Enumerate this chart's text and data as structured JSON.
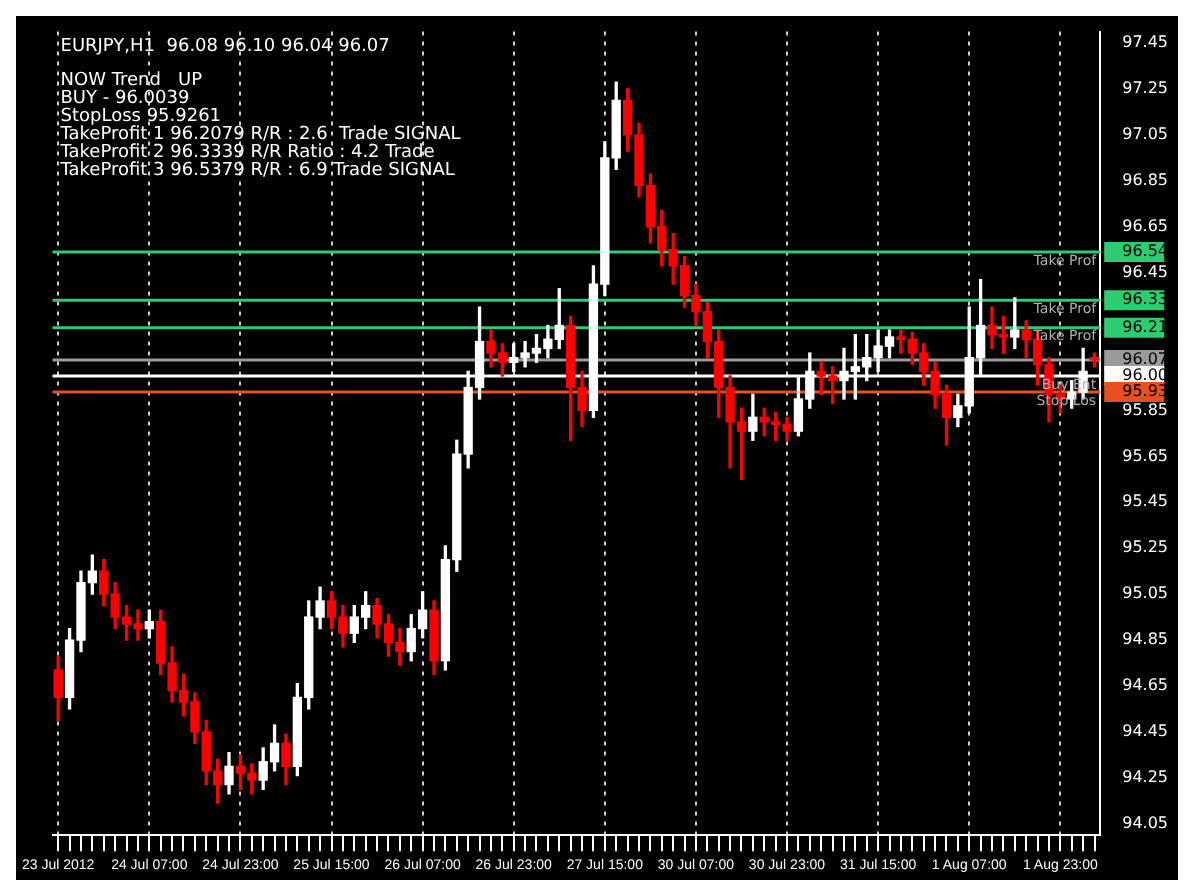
{
  "chart_data": {
    "type": "candlestick",
    "title": "EURJPY,H1  96.08 96.10 96.04 96.07",
    "annotations": [
      "NOW Trend   UP",
      "BUY - 96.0039",
      "StopLoss 95.9261",
      "TakeProfit 1 96.2079 R/R : 2.6  Trade SIGNAL",
      "TakeProfit 2 96.3339 R/R Ratio : 4.2 Trade",
      "TakeProfit 3 96.5379 R/R : 6.9 Trade SIGNAL"
    ],
    "categories": [
      "23 Jul 2012",
      null,
      null,
      null,
      null,
      null,
      null,
      null,
      "24 Jul 07:00",
      null,
      null,
      null,
      null,
      null,
      null,
      null,
      "24 Jul 23:00",
      null,
      null,
      null,
      null,
      null,
      null,
      null,
      "25 Jul 15:00",
      null,
      null,
      null,
      null,
      null,
      null,
      null,
      "26 Jul 07:00",
      null,
      null,
      null,
      null,
      null,
      null,
      null,
      "26 Jul 23:00",
      null,
      null,
      null,
      null,
      null,
      null,
      null,
      "27 Jul 15:00",
      null,
      null,
      null,
      null,
      null,
      null,
      null,
      "30 Jul 07:00",
      null,
      null,
      null,
      null,
      null,
      null,
      null,
      "30 Jul 23:00",
      null,
      null,
      null,
      null,
      null,
      null,
      null,
      "31 Jul 15:00",
      null,
      null,
      null,
      null,
      null,
      null,
      null,
      "1 Aug 07:00",
      null,
      null,
      null,
      null,
      null,
      null,
      null,
      "1 Aug 23:00",
      null,
      null,
      null
    ],
    "ohlc": [
      [
        94.72,
        94.78,
        94.5,
        94.6
      ],
      [
        94.6,
        94.9,
        94.55,
        94.85
      ],
      [
        94.85,
        95.15,
        94.8,
        95.1
      ],
      [
        95.1,
        95.22,
        95.05,
        95.15
      ],
      [
        95.15,
        95.2,
        95.0,
        95.05
      ],
      [
        95.05,
        95.1,
        94.9,
        94.95
      ],
      [
        94.95,
        95.0,
        94.85,
        94.92
      ],
      [
        94.92,
        94.98,
        94.85,
        94.9
      ],
      [
        94.9,
        94.98,
        94.86,
        94.93
      ],
      [
        94.93,
        94.98,
        94.7,
        94.75
      ],
      [
        94.75,
        94.82,
        94.58,
        94.63
      ],
      [
        94.63,
        94.7,
        94.52,
        94.58
      ],
      [
        94.58,
        94.62,
        94.4,
        94.45
      ],
      [
        94.45,
        94.5,
        94.22,
        94.28
      ],
      [
        94.28,
        94.33,
        94.14,
        94.22
      ],
      [
        94.22,
        94.36,
        94.18,
        94.3
      ],
      [
        94.3,
        94.35,
        94.2,
        94.27
      ],
      [
        94.27,
        94.31,
        94.18,
        94.24
      ],
      [
        94.24,
        94.38,
        94.2,
        94.32
      ],
      [
        94.32,
        94.48,
        94.28,
        94.4
      ],
      [
        94.4,
        94.44,
        94.22,
        94.3
      ],
      [
        94.3,
        94.66,
        94.26,
        94.6
      ],
      [
        94.6,
        95.02,
        94.55,
        94.95
      ],
      [
        94.95,
        95.08,
        94.9,
        95.02
      ],
      [
        95.02,
        95.06,
        94.9,
        94.95
      ],
      [
        94.95,
        95.0,
        94.82,
        94.88
      ],
      [
        94.88,
        95.0,
        94.84,
        94.95
      ],
      [
        94.95,
        95.06,
        94.9,
        95.0
      ],
      [
        95.0,
        95.03,
        94.86,
        94.92
      ],
      [
        94.92,
        94.96,
        94.78,
        94.84
      ],
      [
        94.84,
        94.9,
        94.74,
        94.8
      ],
      [
        94.8,
        94.96,
        94.76,
        94.9
      ],
      [
        94.9,
        95.06,
        94.86,
        94.98
      ],
      [
        94.98,
        95.02,
        94.7,
        94.76
      ],
      [
        94.76,
        95.26,
        94.72,
        95.2
      ],
      [
        95.2,
        95.72,
        95.15,
        95.66
      ],
      [
        95.66,
        96.02,
        95.6,
        95.95
      ],
      [
        95.95,
        96.3,
        95.9,
        96.15
      ],
      [
        96.15,
        96.2,
        96.04,
        96.1
      ],
      [
        96.1,
        96.14,
        96.0,
        96.06
      ],
      [
        96.06,
        96.14,
        96.02,
        96.08
      ],
      [
        96.08,
        96.15,
        96.04,
        96.1
      ],
      [
        96.1,
        96.18,
        96.06,
        96.12
      ],
      [
        96.12,
        96.22,
        96.08,
        96.16
      ],
      [
        96.16,
        96.38,
        96.12,
        96.22
      ],
      [
        96.22,
        96.26,
        95.72,
        95.95
      ],
      [
        95.95,
        96.02,
        95.78,
        95.85
      ],
      [
        95.85,
        96.48,
        95.82,
        96.4
      ],
      [
        96.4,
        97.02,
        96.35,
        96.95
      ],
      [
        96.95,
        97.28,
        96.9,
        97.2
      ],
      [
        97.2,
        97.25,
        96.98,
        97.05
      ],
      [
        97.05,
        97.1,
        96.78,
        96.83
      ],
      [
        96.83,
        96.88,
        96.58,
        96.65
      ],
      [
        96.65,
        96.72,
        96.48,
        96.55
      ],
      [
        96.55,
        96.62,
        96.4,
        96.48
      ],
      [
        96.48,
        96.52,
        96.3,
        96.35
      ],
      [
        96.35,
        96.4,
        96.22,
        96.28
      ],
      [
        96.28,
        96.32,
        96.08,
        96.15
      ],
      [
        96.15,
        96.2,
        95.82,
        95.95
      ],
      [
        95.95,
        96.0,
        95.6,
        95.8
      ],
      [
        95.8,
        95.86,
        95.55,
        95.76
      ],
      [
        95.76,
        95.92,
        95.72,
        95.82
      ],
      [
        95.82,
        95.86,
        95.74,
        95.8
      ],
      [
        95.8,
        95.84,
        95.72,
        95.79
      ],
      [
        95.79,
        95.82,
        95.72,
        95.76
      ],
      [
        95.76,
        96.0,
        95.74,
        95.9
      ],
      [
        95.9,
        96.1,
        95.86,
        96.02
      ],
      [
        96.02,
        96.06,
        95.92,
        96.0
      ],
      [
        96.0,
        96.04,
        95.88,
        95.98
      ],
      [
        95.98,
        96.12,
        95.9,
        96.02
      ],
      [
        96.02,
        96.18,
        95.9,
        96.04
      ],
      [
        96.04,
        96.18,
        95.98,
        96.08
      ],
      [
        96.08,
        96.2,
        96.02,
        96.13
      ],
      [
        96.13,
        96.2,
        96.08,
        96.17
      ],
      [
        96.17,
        96.2,
        96.1,
        96.16
      ],
      [
        96.16,
        96.19,
        96.05,
        96.1
      ],
      [
        96.1,
        96.14,
        95.96,
        96.02
      ],
      [
        96.02,
        96.06,
        95.86,
        95.92
      ],
      [
        95.92,
        95.96,
        95.7,
        95.82
      ],
      [
        95.82,
        95.92,
        95.78,
        95.87
      ],
      [
        95.87,
        96.3,
        95.84,
        96.08
      ],
      [
        96.08,
        96.42,
        96.0,
        96.22
      ],
      [
        96.22,
        96.3,
        96.12,
        96.18
      ],
      [
        96.18,
        96.26,
        96.1,
        96.17
      ],
      [
        96.17,
        96.34,
        96.12,
        96.2
      ],
      [
        96.2,
        96.24,
        96.08,
        96.16
      ],
      [
        96.16,
        96.2,
        95.96,
        96.05
      ],
      [
        96.05,
        96.08,
        95.8,
        95.92
      ],
      [
        95.92,
        95.96,
        95.84,
        95.9
      ],
      [
        95.9,
        95.98,
        95.86,
        95.93
      ],
      [
        95.93,
        96.12,
        95.9,
        96.02
      ],
      [
        96.08,
        96.1,
        96.04,
        96.07
      ]
    ],
    "colors": [
      "#ff0000",
      "#ffffff",
      "#ffffff",
      "#ffffff",
      "#ff0000",
      "#ff0000",
      "#ff0000",
      "#ff0000",
      "#ffffff",
      "#ff0000",
      "#ff0000",
      "#ff0000",
      "#ff0000",
      "#ff0000",
      "#ff0000",
      "#ffffff",
      "#ff0000",
      "#ff0000",
      "#ffffff",
      "#ffffff",
      "#ff0000",
      "#ffffff",
      "#ffffff",
      "#ffffff",
      "#ff0000",
      "#ff0000",
      "#ffffff",
      "#ffffff",
      "#ff0000",
      "#ff0000",
      "#ff0000",
      "#ffffff",
      "#ffffff",
      "#ff0000",
      "#ffffff",
      "#ffffff",
      "#ffffff",
      "#ffffff",
      "#ff0000",
      "#ff0000",
      "#ffffff",
      "#ffffff",
      "#ffffff",
      "#ffffff",
      "#ffffff",
      "#ff0000",
      "#ff0000",
      "#ffffff",
      "#ffffff",
      "#ffffff",
      "#ff0000",
      "#ff0000",
      "#ff0000",
      "#ff0000",
      "#ff0000",
      "#ff0000",
      "#ff0000",
      "#ff0000",
      "#ff0000",
      "#ff0000",
      "#ff0000",
      "#ffffff",
      "#ff0000",
      "#ff0000",
      "#ff0000",
      "#ffffff",
      "#ffffff",
      "#ff0000",
      "#ff0000",
      "#ffffff",
      "#ffffff",
      "#ffffff",
      "#ffffff",
      "#ffffff",
      "#ff0000",
      "#ff0000",
      "#ff0000",
      "#ff0000",
      "#ff0000",
      "#ffffff",
      "#ffffff",
      "#ffffff",
      "#ff0000",
      "#ff0000",
      "#ffffff",
      "#ff0000",
      "#ff0000",
      "#ff0000",
      "#ff0000",
      "#ffffff",
      "#ffffff",
      "#ff0000"
    ],
    "ylim": [
      94.0,
      97.5
    ],
    "yticks": [
      94.05,
      94.25,
      94.45,
      94.65,
      94.85,
      95.05,
      95.25,
      95.45,
      95.65,
      95.85,
      {
        "value": 95.93,
        "label": "95.93"
      },
      {
        "value": 96.0,
        "label": "96.00"
      },
      {
        "value": 96.07,
        "label": "96.07"
      },
      {
        "value": 96.21,
        "label": "96.21"
      },
      {
        "value": 96.33,
        "label": "96.33"
      },
      96.45,
      {
        "value": 96.54,
        "label": "96.54"
      },
      96.65,
      96.85,
      97.05,
      97.25,
      97.45
    ],
    "ref_lines": [
      {
        "axis": "y",
        "value": 96.54,
        "label": "Take Prof",
        "color": "#2ecc71"
      },
      {
        "axis": "y",
        "value": 96.33,
        "label": "Take Prof",
        "color": "#2ecc71"
      },
      {
        "axis": "y",
        "value": 96.21,
        "label": "Take Prof",
        "color": "#2ecc71"
      },
      {
        "axis": "y",
        "value": 96.07,
        "label": null,
        "color": "#9a9a9a"
      },
      {
        "axis": "y",
        "value": 96.0,
        "label": "Buy Ent",
        "color": "#ffffff"
      },
      {
        "axis": "y",
        "value": 95.93,
        "label": "Stop Los",
        "color": "#e8501e"
      }
    ],
    "grid": "x",
    "legend": false
  }
}
